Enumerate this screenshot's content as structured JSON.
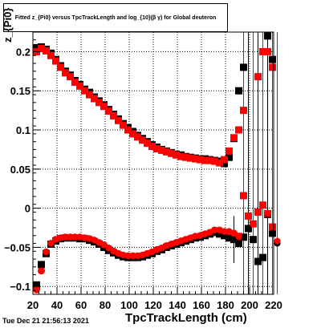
{
  "chart_data": {
    "type": "scatter",
    "title": "Fitted  z_{Pi0}  versus TpcTrackLength and log_{10}(β γ) for Global deuteron",
    "xlabel": "TpcTrackLength (cm)",
    "ylabel": "z_{Pi0}",
    "xlim": [
      20,
      220
    ],
    "ylim": [
      -0.11,
      0.225
    ],
    "x_ticks": [
      20,
      40,
      60,
      80,
      100,
      120,
      140,
      160,
      180,
      200,
      220
    ],
    "x_tick_labels": [
      "20",
      "40",
      "60",
      "80",
      "100",
      "120",
      "140",
      "160",
      "180",
      "200",
      "220"
    ],
    "y_ticks": [
      -0.1,
      -0.05,
      0,
      0.05,
      0.1,
      0.15,
      0.2
    ],
    "y_tick_labels": [
      "−0.1",
      "−0.05",
      "0",
      "0.05",
      "0.1",
      "0.15",
      "0.2"
    ],
    "grid": true,
    "series": [
      {
        "color": "#000000",
        "points": [
          [
            23,
            0.205
          ],
          [
            27,
            0.206
          ],
          [
            31,
            0.203
          ],
          [
            35,
            0.198
          ],
          [
            39,
            0.19
          ],
          [
            43,
            0.182
          ],
          [
            47,
            0.175
          ],
          [
            51,
            0.17
          ],
          [
            55,
            0.163
          ],
          [
            59,
            0.158
          ],
          [
            63,
            0.152
          ],
          [
            67,
            0.148
          ],
          [
            71,
            0.142
          ],
          [
            75,
            0.137
          ],
          [
            79,
            0.132
          ],
          [
            83,
            0.126
          ],
          [
            87,
            0.12
          ],
          [
            91,
            0.114
          ],
          [
            95,
            0.108
          ],
          [
            99,
            0.103
          ],
          [
            103,
            0.098
          ],
          [
            107,
            0.093
          ],
          [
            111,
            0.089
          ],
          [
            115,
            0.085
          ],
          [
            119,
            0.081
          ],
          [
            123,
            0.078
          ],
          [
            127,
            0.075
          ],
          [
            131,
            0.073
          ],
          [
            135,
            0.071
          ],
          [
            139,
            0.069
          ],
          [
            143,
            0.068
          ],
          [
            147,
            0.066
          ],
          [
            151,
            0.065
          ],
          [
            155,
            0.064
          ],
          [
            159,
            0.063
          ],
          [
            163,
            0.063
          ],
          [
            167,
            0.062
          ],
          [
            171,
            0.061
          ],
          [
            175,
            0.06
          ],
          [
            179,
            0.057
          ],
          [
            183,
            0.065
          ],
          [
            187,
            0.089
          ],
          [
            191,
            0.15
          ],
          [
            195,
            0.18
          ],
          [
            211,
            0.235
          ],
          [
            215,
            0.22
          ],
          [
            219,
            0.19
          ],
          [
            223,
            0.12
          ],
          [
            23,
            -0.098
          ],
          [
            27,
            -0.072
          ],
          [
            31,
            -0.058
          ],
          [
            35,
            -0.046
          ],
          [
            39,
            -0.042
          ],
          [
            43,
            -0.039
          ],
          [
            47,
            -0.038
          ],
          [
            51,
            -0.038
          ],
          [
            55,
            -0.038
          ],
          [
            59,
            -0.039
          ],
          [
            63,
            -0.039
          ],
          [
            67,
            -0.041
          ],
          [
            71,
            -0.043
          ],
          [
            75,
            -0.046
          ],
          [
            79,
            -0.05
          ],
          [
            83,
            -0.054
          ],
          [
            87,
            -0.057
          ],
          [
            91,
            -0.06
          ],
          [
            95,
            -0.062
          ],
          [
            99,
            -0.063
          ],
          [
            103,
            -0.063
          ],
          [
            107,
            -0.063
          ],
          [
            111,
            -0.062
          ],
          [
            115,
            -0.06
          ],
          [
            119,
            -0.058
          ],
          [
            123,
            -0.055
          ],
          [
            127,
            -0.053
          ],
          [
            131,
            -0.05
          ],
          [
            135,
            -0.048
          ],
          [
            139,
            -0.046
          ],
          [
            143,
            -0.044
          ],
          [
            147,
            -0.042
          ],
          [
            151,
            -0.04
          ],
          [
            155,
            -0.038
          ],
          [
            159,
            -0.037
          ],
          [
            163,
            -0.035
          ],
          [
            167,
            -0.033
          ],
          [
            171,
            -0.031
          ],
          [
            175,
            -0.033
          ],
          [
            179,
            -0.035
          ],
          [
            183,
            -0.038
          ],
          [
            187,
            -0.04
          ],
          [
            191,
            -0.045
          ],
          [
            195,
            -0.037
          ],
          [
            199,
            -0.026
          ],
          [
            203,
            -0.04
          ],
          [
            207,
            -0.068
          ],
          [
            211,
            -0.063
          ],
          [
            215,
            -0.008
          ],
          [
            219,
            -0.032
          ],
          [
            223,
            -0.045
          ]
        ]
      },
      {
        "color": "#ff0000",
        "points": [
          [
            23,
            0.2
          ],
          [
            27,
            0.204
          ],
          [
            31,
            0.201
          ],
          [
            35,
            0.195
          ],
          [
            39,
            0.188
          ],
          [
            43,
            0.18
          ],
          [
            47,
            0.173
          ],
          [
            51,
            0.168
          ],
          [
            55,
            0.161
          ],
          [
            59,
            0.156
          ],
          [
            63,
            0.15
          ],
          [
            67,
            0.145
          ],
          [
            71,
            0.14
          ],
          [
            75,
            0.135
          ],
          [
            79,
            0.13
          ],
          [
            83,
            0.124
          ],
          [
            87,
            0.118
          ],
          [
            91,
            0.112
          ],
          [
            95,
            0.106
          ],
          [
            99,
            0.1
          ],
          [
            103,
            0.095
          ],
          [
            107,
            0.091
          ],
          [
            111,
            0.087
          ],
          [
            115,
            0.083
          ],
          [
            119,
            0.079
          ],
          [
            123,
            0.076
          ],
          [
            127,
            0.074
          ],
          [
            131,
            0.072
          ],
          [
            135,
            0.07
          ],
          [
            139,
            0.068
          ],
          [
            143,
            0.066
          ],
          [
            147,
            0.065
          ],
          [
            151,
            0.064
          ],
          [
            155,
            0.063
          ],
          [
            159,
            0.062
          ],
          [
            163,
            0.061
          ],
          [
            167,
            0.061
          ],
          [
            171,
            0.06
          ],
          [
            175,
            0.058
          ],
          [
            179,
            0.062
          ],
          [
            183,
            0.073
          ],
          [
            187,
            0.09
          ],
          [
            191,
            0.1
          ],
          [
            195,
            0.125
          ],
          [
            207,
            0.168
          ],
          [
            211,
            0.2
          ],
          [
            215,
            0.2
          ],
          [
            219,
            0.18
          ],
          [
            223,
            0.123
          ],
          [
            23,
            -0.104
          ],
          [
            27,
            -0.08
          ],
          [
            31,
            -0.056
          ],
          [
            35,
            -0.045
          ],
          [
            39,
            -0.04
          ],
          [
            43,
            -0.038
          ],
          [
            47,
            -0.037
          ],
          [
            51,
            -0.037
          ],
          [
            55,
            -0.037
          ],
          [
            59,
            -0.037
          ],
          [
            63,
            -0.038
          ],
          [
            67,
            -0.039
          ],
          [
            71,
            -0.041
          ],
          [
            75,
            -0.044
          ],
          [
            79,
            -0.047
          ],
          [
            83,
            -0.051
          ],
          [
            87,
            -0.055
          ],
          [
            91,
            -0.058
          ],
          [
            95,
            -0.06
          ],
          [
            99,
            -0.061
          ],
          [
            103,
            -0.061
          ],
          [
            107,
            -0.061
          ],
          [
            111,
            -0.06
          ],
          [
            115,
            -0.058
          ],
          [
            119,
            -0.056
          ],
          [
            123,
            -0.053
          ],
          [
            127,
            -0.051
          ],
          [
            131,
            -0.048
          ],
          [
            135,
            -0.046
          ],
          [
            139,
            -0.044
          ],
          [
            143,
            -0.042
          ],
          [
            147,
            -0.04
          ],
          [
            151,
            -0.038
          ],
          [
            155,
            -0.036
          ],
          [
            159,
            -0.035
          ],
          [
            163,
            -0.033
          ],
          [
            167,
            -0.031
          ],
          [
            171,
            -0.028
          ],
          [
            175,
            -0.028
          ],
          [
            179,
            -0.03
          ],
          [
            183,
            -0.03
          ],
          [
            187,
            -0.032
          ],
          [
            191,
            -0.036
          ],
          [
            195,
            0.016
          ],
          [
            199,
            -0.01
          ],
          [
            203,
            -0.02
          ],
          [
            207,
            -0.005
          ],
          [
            211,
            0.004
          ],
          [
            215,
            -0.007
          ],
          [
            219,
            -0.024
          ],
          [
            223,
            -0.042
          ]
        ]
      }
    ]
  },
  "footer": "Tue Dec 21 21:56:13 2021"
}
